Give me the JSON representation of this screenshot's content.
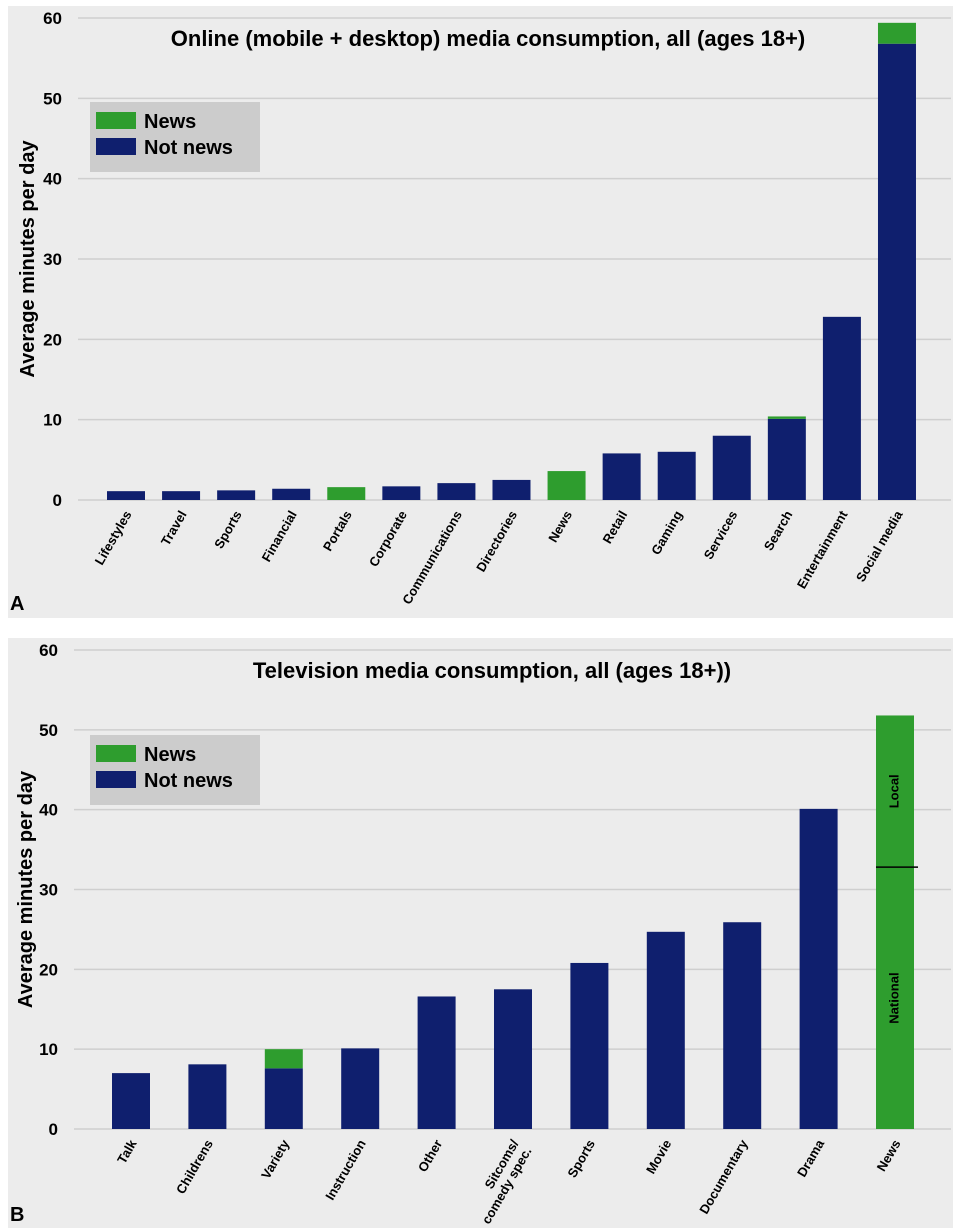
{
  "colors": {
    "news": "#2e9d2e",
    "not_news": "#0f1f6e",
    "grid": "#cfcfcf",
    "panel_bg": "#ececec",
    "legend_bg": "#cccccc"
  },
  "chart_data": [
    {
      "panel": "A",
      "type": "bar",
      "stacked": true,
      "title": "Online (mobile + desktop) media consumption, all (ages 18+)",
      "ylabel": "Average minutes per day",
      "xlabel": "",
      "ylim": [
        0,
        60
      ],
      "yticks": [
        0,
        10,
        20,
        30,
        40,
        50,
        60
      ],
      "grid": true,
      "legend": {
        "placement": "top-left",
        "entries": [
          "News",
          "Not news"
        ]
      },
      "categories": [
        "Lifestyles",
        "Travel",
        "Sports",
        "Financial",
        "Portals",
        "Corporate",
        "Communications",
        "Directories",
        "News",
        "Retail",
        "Gaming",
        "Services",
        "Search",
        "Entertainment",
        "Social media"
      ],
      "series": [
        {
          "name": "Not news",
          "values": [
            1.1,
            1.1,
            1.2,
            1.4,
            0,
            1.7,
            2.1,
            2.5,
            0,
            5.8,
            6.0,
            8.0,
            10.1,
            22.8,
            56.8
          ]
        },
        {
          "name": "News",
          "values": [
            0,
            0,
            0,
            0,
            1.6,
            0,
            0,
            0,
            3.6,
            0,
            0,
            0,
            0.3,
            0,
            2.6
          ]
        }
      ]
    },
    {
      "panel": "B",
      "type": "bar",
      "stacked": true,
      "title": "Television media consumption, all (ages 18+))",
      "ylabel": "Average minutes per day",
      "xlabel": "",
      "ylim": [
        0,
        60
      ],
      "yticks": [
        0,
        10,
        20,
        30,
        40,
        50,
        60
      ],
      "grid": true,
      "legend": {
        "placement": "top-left",
        "entries": [
          "News",
          "Not news"
        ]
      },
      "categories": [
        "Talk",
        "Childrens",
        "Variety",
        "Instruction",
        "Other",
        "Sitcoms/\ncomedy spec.",
        "Sports",
        "Movie",
        "Documentary",
        "Drama",
        "News"
      ],
      "series": [
        {
          "name": "Not news",
          "values": [
            7.0,
            8.1,
            7.6,
            10.1,
            16.6,
            17.5,
            20.8,
            24.7,
            25.9,
            40.1,
            0
          ]
        },
        {
          "name": "News",
          "values": [
            0,
            0,
            2.4,
            0,
            0,
            0,
            0,
            0,
            0,
            0,
            51.8
          ]
        }
      ],
      "annotations": [
        {
          "category": "News",
          "text": "National",
          "from": 0,
          "to": 32.8
        },
        {
          "category": "News",
          "text": "Local",
          "from": 32.8,
          "to": 51.8
        }
      ]
    }
  ]
}
